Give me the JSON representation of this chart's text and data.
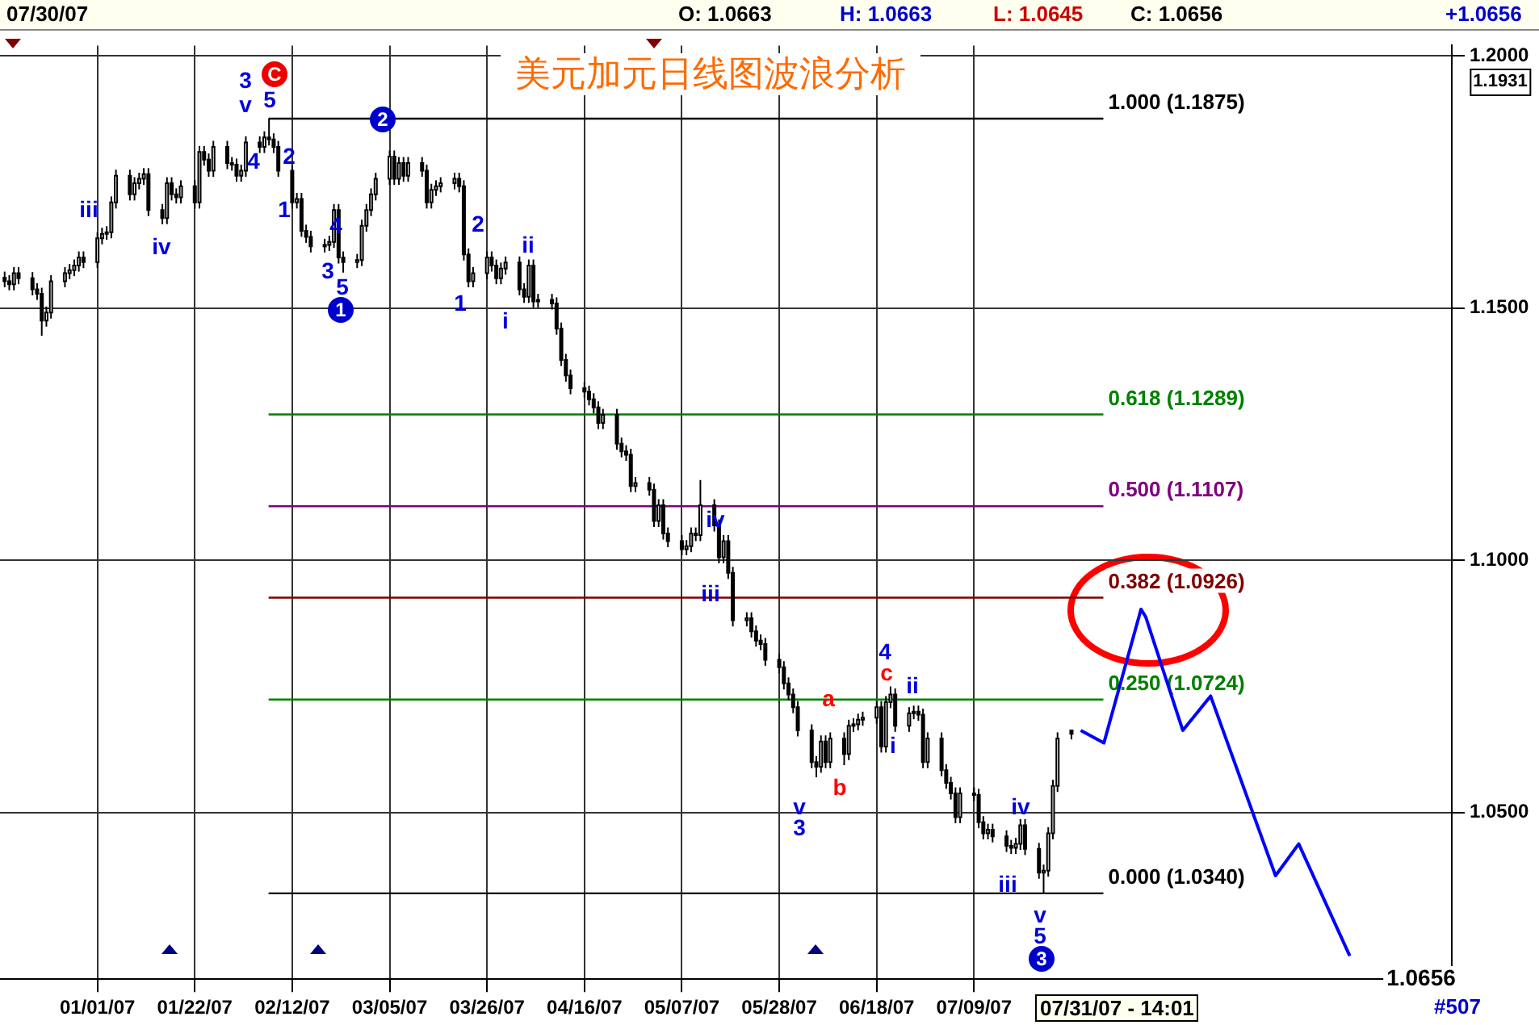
{
  "chart_data": {
    "type": "candlestick",
    "title": "美元加元日线图波浪分析",
    "x": [
      "2006-12-12",
      "2006-12-13",
      "2006-12-14",
      "2006-12-15",
      "2006-12-18",
      "2006-12-19",
      "2006-12-20",
      "2006-12-21",
      "2006-12-22",
      "2006-12-25",
      "2006-12-26",
      "2006-12-27",
      "2006-12-28",
      "2006-12-29",
      "2007-01-01",
      "2007-01-02",
      "2007-01-03",
      "2007-01-04",
      "2007-01-05",
      "2007-01-08",
      "2007-01-09",
      "2007-01-10",
      "2007-01-11",
      "2007-01-12",
      "2007-01-15",
      "2007-01-16",
      "2007-01-17",
      "2007-01-18",
      "2007-01-19",
      "2007-01-22",
      "2007-01-23",
      "2007-01-24",
      "2007-01-25",
      "2007-01-26",
      "2007-01-29",
      "2007-01-30",
      "2007-01-31",
      "2007-02-01",
      "2007-02-02",
      "2007-02-05",
      "2007-02-06",
      "2007-02-07",
      "2007-02-08",
      "2007-02-09",
      "2007-02-12",
      "2007-02-13",
      "2007-02-14",
      "2007-02-15",
      "2007-02-16",
      "2007-02-19",
      "2007-02-20",
      "2007-02-21",
      "2007-02-22",
      "2007-02-23",
      "2007-02-26",
      "2007-02-27",
      "2007-02-28",
      "2007-03-01",
      "2007-03-02",
      "2007-03-05",
      "2007-03-06",
      "2007-03-07",
      "2007-03-08",
      "2007-03-09",
      "2007-03-12",
      "2007-03-13",
      "2007-03-14",
      "2007-03-15",
      "2007-03-16",
      "2007-03-19",
      "2007-03-20",
      "2007-03-21",
      "2007-03-22",
      "2007-03-23",
      "2007-03-26",
      "2007-03-27",
      "2007-03-28",
      "2007-03-29",
      "2007-03-30",
      "2007-04-02",
      "2007-04-03",
      "2007-04-04",
      "2007-04-05",
      "2007-04-06",
      "2007-04-09",
      "2007-04-10",
      "2007-04-11",
      "2007-04-12",
      "2007-04-13",
      "2007-04-16",
      "2007-04-17",
      "2007-04-18",
      "2007-04-19",
      "2007-04-20",
      "2007-04-23",
      "2007-04-24",
      "2007-04-25",
      "2007-04-26",
      "2007-04-27",
      "2007-04-30",
      "2007-05-01",
      "2007-05-02",
      "2007-05-03",
      "2007-05-04",
      "2007-05-07",
      "2007-05-08",
      "2007-05-09",
      "2007-05-10",
      "2007-05-11",
      "2007-05-14",
      "2007-05-15",
      "2007-05-16",
      "2007-05-17",
      "2007-05-18",
      "2007-05-21",
      "2007-05-22",
      "2007-05-23",
      "2007-05-24",
      "2007-05-25",
      "2007-05-28",
      "2007-05-29",
      "2007-05-30",
      "2007-05-31",
      "2007-06-01",
      "2007-06-04",
      "2007-06-05",
      "2007-06-06",
      "2007-06-07",
      "2007-06-08",
      "2007-06-11",
      "2007-06-12",
      "2007-06-13",
      "2007-06-14",
      "2007-06-15",
      "2007-06-18",
      "2007-06-19",
      "2007-06-20",
      "2007-06-21",
      "2007-06-22",
      "2007-06-25",
      "2007-06-26",
      "2007-06-27",
      "2007-06-28",
      "2007-06-29",
      "2007-07-02",
      "2007-07-03",
      "2007-07-04",
      "2007-07-05",
      "2007-07-06",
      "2007-07-09",
      "2007-07-10",
      "2007-07-11",
      "2007-07-12",
      "2007-07-13",
      "2007-07-16",
      "2007-07-17",
      "2007-07-18",
      "2007-07-19",
      "2007-07-20",
      "2007-07-23",
      "2007-07-24",
      "2007-07-25",
      "2007-07-26",
      "2007-07-27",
      "2007-07-30"
    ],
    "ohlc": [
      [
        1.156,
        1.1572,
        1.1541,
        1.1553
      ],
      [
        1.1553,
        1.1565,
        1.1535,
        1.1547
      ],
      [
        1.1547,
        1.1581,
        1.1535,
        1.1569
      ],
      [
        1.1569,
        1.1581,
        1.1547,
        1.1559
      ],
      [
        1.1559,
        1.1571,
        1.1525,
        1.1537
      ],
      [
        1.1537,
        1.1549,
        1.1516,
        1.1528
      ],
      [
        1.1528,
        1.154,
        1.1445,
        1.1475
      ],
      [
        1.1475,
        1.1503,
        1.1463,
        1.1491
      ],
      [
        1.1491,
        1.1565,
        1.1479,
        1.1553
      ],
      [
        1.1553,
        1.1581,
        1.1541,
        1.1569
      ],
      [
        1.1569,
        1.1587,
        1.1557,
        1.1575
      ],
      [
        1.1575,
        1.1596,
        1.1563,
        1.1584
      ],
      [
        1.1584,
        1.1612,
        1.1572,
        1.16
      ],
      [
        1.16,
        1.1612,
        1.1579,
        1.1591
      ],
      [
        1.1591,
        1.165,
        1.1579,
        1.1638
      ],
      [
        1.1638,
        1.1659,
        1.1626,
        1.1647
      ],
      [
        1.1647,
        1.1662,
        1.1635,
        1.165
      ],
      [
        1.165,
        1.1721,
        1.1638,
        1.1709
      ],
      [
        1.1709,
        1.1774,
        1.1697,
        1.1762
      ],
      [
        1.1762,
        1.1774,
        1.1713,
        1.1725
      ],
      [
        1.1725,
        1.1759,
        1.1713,
        1.1747
      ],
      [
        1.1747,
        1.1768,
        1.1735,
        1.1756
      ],
      [
        1.1756,
        1.1777,
        1.1744,
        1.1765
      ],
      [
        1.1765,
        1.1777,
        1.1682,
        1.1694
      ],
      [
        1.1694,
        1.1706,
        1.1666,
        1.1678
      ],
      [
        1.1678,
        1.1759,
        1.1666,
        1.1747
      ],
      [
        1.1747,
        1.1759,
        1.1713,
        1.1725
      ],
      [
        1.1725,
        1.1737,
        1.1707,
        1.1719
      ],
      [
        1.1719,
        1.1753,
        1.1707,
        1.1741
      ],
      [
        1.1741,
        1.1753,
        1.1697,
        1.1709
      ],
      [
        1.1709,
        1.1821,
        1.1697,
        1.1809
      ],
      [
        1.1809,
        1.1821,
        1.1782,
        1.1794
      ],
      [
        1.1794,
        1.1806,
        1.176,
        1.1772
      ],
      [
        1.1772,
        1.1831,
        1.176,
        1.1819
      ],
      [
        1.1819,
        1.1831,
        1.1775,
        1.1787
      ],
      [
        1.1787,
        1.1799,
        1.1772,
        1.1784
      ],
      [
        1.1784,
        1.1796,
        1.175,
        1.1762
      ],
      [
        1.1762,
        1.1784,
        1.175,
        1.1772
      ],
      [
        1.1772,
        1.184,
        1.176,
        1.1828
      ],
      [
        1.1828,
        1.184,
        1.1807,
        1.1819
      ],
      [
        1.1819,
        1.185,
        1.1807,
        1.1838
      ],
      [
        1.1838,
        1.1875,
        1.1822,
        1.1834
      ],
      [
        1.1834,
        1.1846,
        1.1807,
        1.1819
      ],
      [
        1.1819,
        1.1831,
        1.176,
        1.1772
      ],
      [
        1.1772,
        1.1784,
        1.1697,
        1.1709
      ],
      [
        1.1709,
        1.1728,
        1.1697,
        1.1716
      ],
      [
        1.1716,
        1.1728,
        1.1641,
        1.1653
      ],
      [
        1.1653,
        1.1665,
        1.1629,
        1.1641
      ],
      [
        1.1641,
        1.1653,
        1.161,
        1.1622
      ],
      [
        1.1622,
        1.1637,
        1.161,
        1.1625
      ],
      [
        1.1625,
        1.1643,
        1.1613,
        1.1631
      ],
      [
        1.1631,
        1.1706,
        1.1619,
        1.1694
      ],
      [
        1.1694,
        1.1706,
        1.1588,
        1.16
      ],
      [
        1.16,
        1.1612,
        1.157,
        1.1591
      ],
      [
        1.1591,
        1.1607,
        1.1579,
        1.1595
      ],
      [
        1.1595,
        1.1675,
        1.1583,
        1.1663
      ],
      [
        1.1663,
        1.1706,
        1.1651,
        1.1694
      ],
      [
        1.1694,
        1.1737,
        1.1682,
        1.1725
      ],
      [
        1.1725,
        1.1768,
        1.1713,
        1.1756
      ],
      [
        1.1756,
        1.1812,
        1.1744,
        1.18
      ],
      [
        1.18,
        1.1812,
        1.1744,
        1.1756
      ],
      [
        1.1756,
        1.1799,
        1.1744,
        1.1787
      ],
      [
        1.1787,
        1.1799,
        1.175,
        1.1762
      ],
      [
        1.1762,
        1.1799,
        1.175,
        1.1787
      ],
      [
        1.1787,
        1.1799,
        1.176,
        1.1772
      ],
      [
        1.1772,
        1.1784,
        1.1697,
        1.1709
      ],
      [
        1.1709,
        1.1746,
        1.1697,
        1.1734
      ],
      [
        1.1734,
        1.1753,
        1.1722,
        1.1741
      ],
      [
        1.1741,
        1.1759,
        1.1729,
        1.1747
      ],
      [
        1.1747,
        1.1768,
        1.1735,
        1.1756
      ],
      [
        1.1756,
        1.1768,
        1.1729,
        1.1741
      ],
      [
        1.1741,
        1.1753,
        1.1594,
        1.1606
      ],
      [
        1.1606,
        1.1618,
        1.1541,
        1.1553
      ],
      [
        1.1553,
        1.1581,
        1.1541,
        1.1569
      ],
      [
        1.1569,
        1.1612,
        1.1557,
        1.16
      ],
      [
        1.16,
        1.1612,
        1.1572,
        1.1584
      ],
      [
        1.1584,
        1.1596,
        1.1547,
        1.1559
      ],
      [
        1.1559,
        1.159,
        1.1547,
        1.1578
      ],
      [
        1.1578,
        1.1602,
        1.1566,
        1.159
      ],
      [
        1.159,
        1.1602,
        1.1525,
        1.1537
      ],
      [
        1.1537,
        1.1549,
        1.151,
        1.1522
      ],
      [
        1.1522,
        1.1596,
        1.151,
        1.1584
      ],
      [
        1.1584,
        1.1596,
        1.1501,
        1.1513
      ],
      [
        1.1513,
        1.1528,
        1.1501,
        1.1516
      ],
      [
        1.1516,
        1.1528,
        1.1497,
        1.1509
      ],
      [
        1.1509,
        1.1521,
        1.1447,
        1.1459
      ],
      [
        1.1459,
        1.1471,
        1.1385,
        1.1397
      ],
      [
        1.1397,
        1.1409,
        1.1354,
        1.1366
      ],
      [
        1.1366,
        1.1378,
        1.1329,
        1.1341
      ],
      [
        1.1341,
        1.1353,
        1.1322,
        1.1334
      ],
      [
        1.1334,
        1.1346,
        1.1307,
        1.1319
      ],
      [
        1.1319,
        1.1331,
        1.1291,
        1.1303
      ],
      [
        1.1303,
        1.1315,
        1.126,
        1.1272
      ],
      [
        1.1272,
        1.13,
        1.126,
        1.1288
      ],
      [
        1.1288,
        1.13,
        1.1219,
        1.1231
      ],
      [
        1.1231,
        1.1243,
        1.1204,
        1.1216
      ],
      [
        1.1216,
        1.1228,
        1.1197,
        1.1209
      ],
      [
        1.1209,
        1.1221,
        1.1135,
        1.1147
      ],
      [
        1.1147,
        1.1165,
        1.1135,
        1.1153
      ],
      [
        1.1153,
        1.1165,
        1.1128,
        1.114
      ],
      [
        1.114,
        1.1152,
        1.1066,
        1.1078
      ],
      [
        1.1078,
        1.1121,
        1.1066,
        1.1109
      ],
      [
        1.1109,
        1.1121,
        1.1041,
        1.1053
      ],
      [
        1.1053,
        1.1065,
        1.1026,
        1.1038
      ],
      [
        1.1038,
        1.105,
        1.101,
        1.1022
      ],
      [
        1.1022,
        1.104,
        1.101,
        1.1028
      ],
      [
        1.1028,
        1.1065,
        1.1016,
        1.1053
      ],
      [
        1.1053,
        1.1065,
        1.1038,
        1.105
      ],
      [
        1.105,
        1.1159,
        1.1038,
        1.1109
      ],
      [
        1.1109,
        1.1121,
        1.1057,
        1.1069
      ],
      [
        1.1069,
        1.1081,
        1.0994,
        1.1006
      ],
      [
        1.1006,
        1.105,
        1.0994,
        1.1038
      ],
      [
        1.1038,
        1.105,
        1.0963,
        1.0975
      ],
      [
        1.0975,
        1.0987,
        1.0869,
        1.0881
      ],
      [
        1.0881,
        1.0897,
        1.0869,
        1.0885
      ],
      [
        1.0885,
        1.0897,
        1.0847,
        1.0859
      ],
      [
        1.0859,
        1.0871,
        1.0829,
        1.0841
      ],
      [
        1.0841,
        1.0853,
        1.0822,
        1.0834
      ],
      [
        1.0834,
        1.0846,
        1.0791,
        1.0803
      ],
      [
        1.0803,
        1.0815,
        1.0776,
        1.0788
      ],
      [
        1.0788,
        1.08,
        1.0744,
        1.0756
      ],
      [
        1.0756,
        1.0768,
        1.0722,
        1.0734
      ],
      [
        1.0734,
        1.0746,
        1.0697,
        1.0709
      ],
      [
        1.0709,
        1.0721,
        1.0651,
        1.0663
      ],
      [
        1.0663,
        1.0675,
        1.0588,
        1.06
      ],
      [
        1.06,
        1.0612,
        1.057,
        1.0591
      ],
      [
        1.0591,
        1.0653,
        1.0579,
        1.0641
      ],
      [
        1.0641,
        1.0653,
        1.0588,
        1.06
      ],
      [
        1.06,
        1.0659,
        1.0588,
        1.0647
      ],
      [
        1.0647,
        1.0659,
        1.0594,
        1.0616
      ],
      [
        1.0616,
        1.0684,
        1.0604,
        1.0672
      ],
      [
        1.0672,
        1.0687,
        1.066,
        1.0675
      ],
      [
        1.0675,
        1.0696,
        1.0663,
        1.0684
      ],
      [
        1.0684,
        1.07,
        1.0672,
        1.0688
      ],
      [
        1.0688,
        1.0721,
        1.0676,
        1.0709
      ],
      [
        1.0709,
        1.0721,
        1.0619,
        1.0631
      ],
      [
        1.0631,
        1.0731,
        1.0619,
        1.0719
      ],
      [
        1.0719,
        1.075,
        1.0707,
        1.0734
      ],
      [
        1.0734,
        1.0746,
        1.066,
        1.0672
      ],
      [
        1.0672,
        1.0709,
        1.066,
        1.0697
      ],
      [
        1.0697,
        1.0712,
        1.0685,
        1.07
      ],
      [
        1.07,
        1.0712,
        1.0682,
        1.0694
      ],
      [
        1.0694,
        1.0706,
        1.0588,
        1.06
      ],
      [
        1.06,
        1.0659,
        1.0588,
        1.0647
      ],
      [
        1.0647,
        1.0659,
        1.0572,
        1.0584
      ],
      [
        1.0584,
        1.0596,
        1.0547,
        1.0559
      ],
      [
        1.0559,
        1.0571,
        1.0526,
        1.0538
      ],
      [
        1.0538,
        1.055,
        1.0479,
        1.0491
      ],
      [
        1.0491,
        1.055,
        1.0479,
        1.0538
      ],
      [
        1.0538,
        1.055,
        1.0523,
        1.0535
      ],
      [
        1.0535,
        1.0547,
        1.0469,
        1.0481
      ],
      [
        1.0481,
        1.0493,
        1.0447,
        1.0459
      ],
      [
        1.0459,
        1.0478,
        1.0447,
        1.0466
      ],
      [
        1.0466,
        1.0478,
        1.0441,
        1.0453
      ],
      [
        1.0453,
        1.0465,
        1.0422,
        1.0434
      ],
      [
        1.0434,
        1.0446,
        1.0418,
        1.043
      ],
      [
        1.043,
        1.045,
        1.0418,
        1.0438
      ],
      [
        1.0438,
        1.0487,
        1.0426,
        1.0475
      ],
      [
        1.0475,
        1.0487,
        1.0416,
        1.0428
      ],
      [
        1.0428,
        1.044,
        1.0369,
        1.0381
      ],
      [
        1.0381,
        1.0397,
        1.034,
        1.0385
      ],
      [
        1.0385,
        1.0471,
        1.0373,
        1.0459
      ],
      [
        1.0459,
        1.0565,
        1.0447,
        1.0553
      ],
      [
        1.0553,
        1.0659,
        1.0541,
        1.0647
      ],
      [
        1.0663,
        1.0663,
        1.0645,
        1.0656
      ]
    ],
    "series": [
      {
        "type": "line",
        "color": "#0000ff",
        "x": [
          "2007-08-01",
          "2007-08-06",
          "2007-08-14",
          "2007-08-15",
          "2007-08-23",
          "2007-08-29",
          "2007-09-12",
          "2007-09-17",
          "2007-09-28"
        ],
        "values": [
          1.0663,
          1.0638,
          1.0903,
          1.0888,
          1.0663,
          1.0731,
          1.0375,
          1.0438,
          1.0216
        ]
      }
    ],
    "xlim": [
      "2006-12-11",
      "2007-10-20"
    ],
    "xticks": [
      {
        "value": "2007-01-01",
        "label": "01/01/07"
      },
      {
        "value": "2007-01-22",
        "label": "01/22/07"
      },
      {
        "value": "2007-02-12",
        "label": "02/12/07"
      },
      {
        "value": "2007-03-05",
        "label": "03/05/07"
      },
      {
        "value": "2007-03-26",
        "label": "03/26/07"
      },
      {
        "value": "2007-04-16",
        "label": "04/16/07"
      },
      {
        "value": "2007-05-07",
        "label": "05/07/07"
      },
      {
        "value": "2007-05-28",
        "label": "05/28/07"
      },
      {
        "value": "2007-06-18",
        "label": "06/18/07"
      },
      {
        "value": "2007-07-09",
        "label": "07/09/07"
      }
    ],
    "ylim": [
      1.017,
      1.202
    ],
    "yticks": [
      {
        "value": 1.05,
        "label": "1.0500"
      },
      {
        "value": 1.1,
        "label": "1.1000"
      },
      {
        "value": 1.15,
        "label": "1.1500"
      },
      {
        "value": 1.2,
        "label": "1.2000"
      }
    ],
    "grid": true,
    "legend": false,
    "marker": "none",
    "line_style": "solid",
    "ref_lines": [
      {
        "axis": "y",
        "value": 1.1875,
        "label": "1.000 (1.1875)",
        "color": "#000000"
      },
      {
        "axis": "y",
        "value": 1.1289,
        "label": "0.618 (1.1289)",
        "color": "#008000"
      },
      {
        "axis": "y",
        "value": 1.1107,
        "label": "0.500 (1.1107)",
        "color": "#800080"
      },
      {
        "axis": "y",
        "value": 1.0926,
        "label": "0.382 (1.0926)",
        "color": "#800000"
      },
      {
        "axis": "y",
        "value": 1.0724,
        "label": "0.250 (1.0724)",
        "color": "#008000"
      },
      {
        "axis": "y",
        "value": 1.034,
        "label": "0.000 (1.0340)",
        "color": "#000000"
      }
    ],
    "annotations": [
      "07/30/07",
      "O: 1.0663",
      "H: 1.0663",
      "L: 1.0645",
      "C: 1.0656",
      "+1.0656",
      "07/31/07 - 14:01",
      "#507",
      "1.1931",
      "1.0656",
      "iii",
      "iv",
      "3",
      "v",
      "4",
      "5",
      "C",
      "2",
      "1",
      "3",
      "4",
      "5",
      "1",
      "2",
      "1",
      "2",
      "i",
      "ii",
      "iii",
      "iv",
      "v",
      "3",
      "a",
      "b",
      "4",
      "c",
      "i",
      "ii",
      "iii",
      "iv",
      "v",
      "5",
      "3"
    ]
  }
}
